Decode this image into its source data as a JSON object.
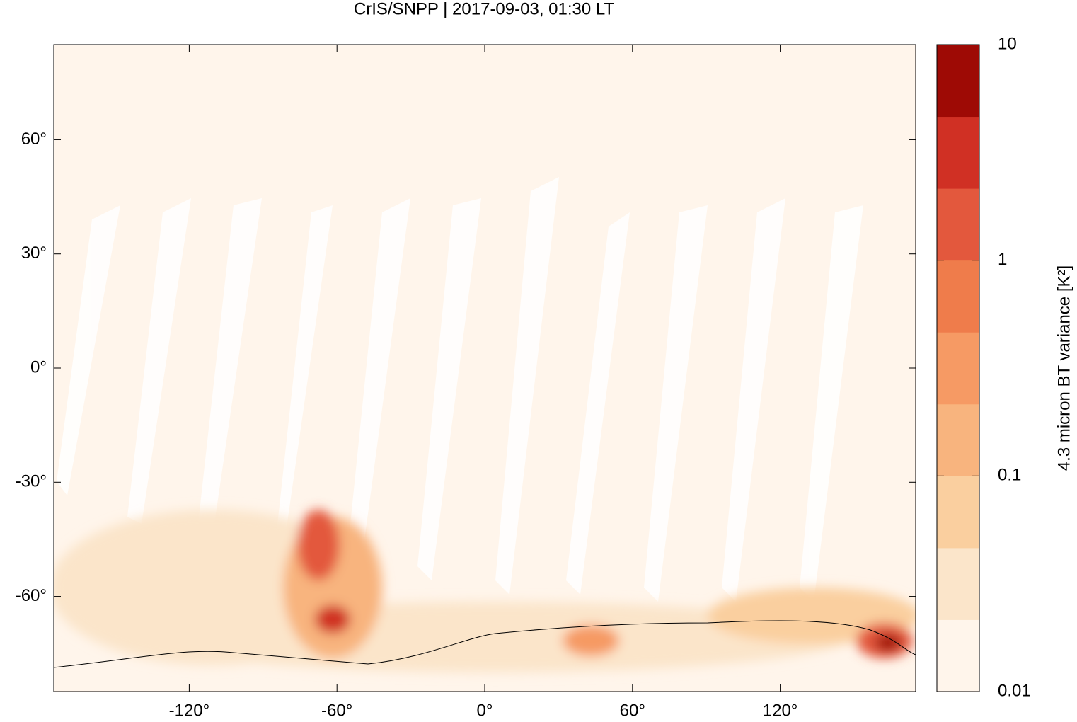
{
  "chart_data": {
    "type": "map",
    "title": "CrIS/SNPP | 2017-09-03, 01:30 LT",
    "xlim": [
      -175,
      175
    ],
    "ylim": [
      -85,
      85
    ],
    "xticks": [
      {
        "value": -120,
        "label": "-120°"
      },
      {
        "value": -60,
        "label": "-60°"
      },
      {
        "value": 0,
        "label": "0°"
      },
      {
        "value": 60,
        "label": "60°"
      },
      {
        "value": 120,
        "label": "120°"
      }
    ],
    "yticks": [
      {
        "value": -60,
        "label": "-60°"
      },
      {
        "value": -30,
        "label": "-30°"
      },
      {
        "value": 0,
        "label": "0°"
      },
      {
        "value": 30,
        "label": "30°"
      },
      {
        "value": 60,
        "label": "60°"
      }
    ],
    "colorbar": {
      "label": "4.3 micron BT variance [K²]",
      "log_scale": true,
      "lim": [
        0.01,
        10
      ],
      "ticks": [
        0.01,
        0.1,
        1,
        10
      ],
      "colors": [
        "#fff5eb",
        "#fbe5ca",
        "#facf9f",
        "#f8b47e",
        "#f69a64",
        "#ef7c4b",
        "#e3583d",
        "#d03024",
        "#9e0a05"
      ]
    }
  }
}
